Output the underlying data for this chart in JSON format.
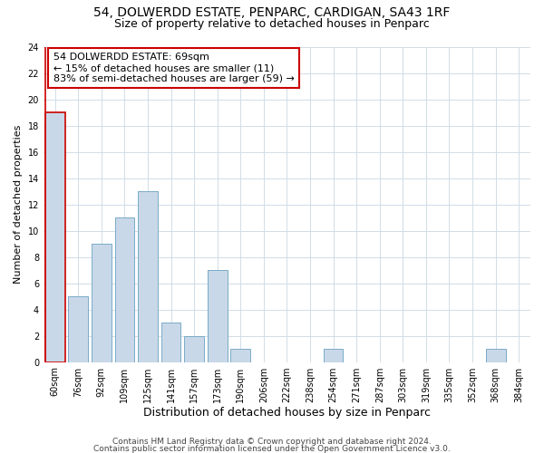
{
  "title1": "54, DOLWERDD ESTATE, PENPARC, CARDIGAN, SA43 1RF",
  "title2": "Size of property relative to detached houses in Penparc",
  "xlabel": "Distribution of detached houses by size in Penparc",
  "ylabel": "Number of detached properties",
  "categories": [
    "60sqm",
    "76sqm",
    "92sqm",
    "109sqm",
    "125sqm",
    "141sqm",
    "157sqm",
    "173sqm",
    "190sqm",
    "206sqm",
    "222sqm",
    "238sqm",
    "254sqm",
    "271sqm",
    "287sqm",
    "303sqm",
    "319sqm",
    "335sqm",
    "352sqm",
    "368sqm",
    "384sqm"
  ],
  "values": [
    19,
    5,
    9,
    11,
    13,
    3,
    2,
    7,
    1,
    0,
    0,
    0,
    1,
    0,
    0,
    0,
    0,
    0,
    0,
    1,
    0
  ],
  "bar_color": "#c8d8e8",
  "bar_edge_color": "#7aaac8",
  "highlight_bar_index": 0,
  "highlight_edge_color": "#cc0000",
  "annotation_text": "54 DOLWERDD ESTATE: 69sqm\n← 15% of detached houses are smaller (11)\n83% of semi-detached houses are larger (59) →",
  "annotation_box_color": "#ffffff",
  "annotation_box_edge_color": "#cc0000",
  "ylim": [
    0,
    24
  ],
  "yticks": [
    0,
    2,
    4,
    6,
    8,
    10,
    12,
    14,
    16,
    18,
    20,
    22,
    24
  ],
  "grid_color": "#d0dde8",
  "footer1": "Contains HM Land Registry data © Crown copyright and database right 2024.",
  "footer2": "Contains public sector information licensed under the Open Government Licence v3.0.",
  "bg_color": "#ffffff",
  "title1_fontsize": 10,
  "title2_fontsize": 9,
  "xlabel_fontsize": 9,
  "ylabel_fontsize": 8,
  "tick_fontsize": 7,
  "annotation_fontsize": 8,
  "footer_fontsize": 6.5
}
